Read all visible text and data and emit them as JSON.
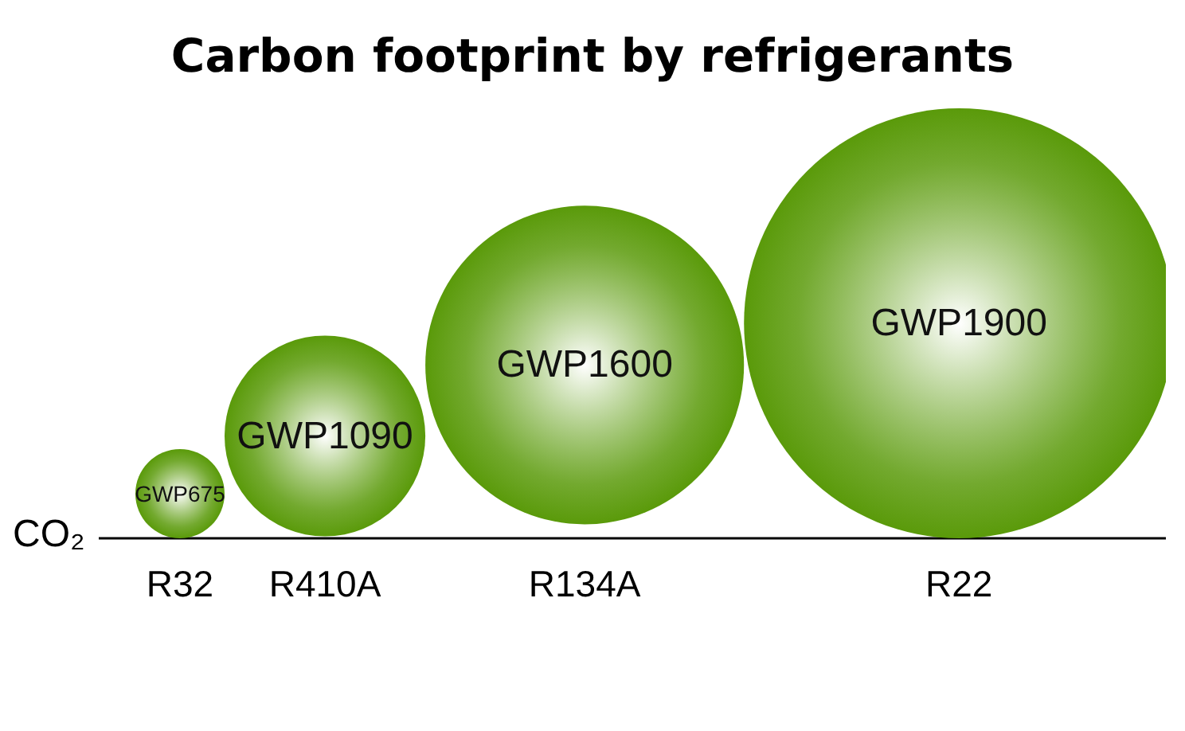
{
  "chart_data": {
    "type": "bubble",
    "title": "Carbon footprint by refrigerants",
    "annotations": [
      "CO₂"
    ],
    "categories": [
      "R32",
      "R410A",
      "R134A",
      "R22"
    ],
    "values": [
      675,
      1090,
      1600,
      1900
    ],
    "sizes": [
      0.043,
      0.218,
      0.549,
      1
    ],
    "value_labels": [
      "GWP675",
      "GWP1090",
      "GWP1600",
      "GWP1900"
    ],
    "color": "#5a9a0a",
    "grid": false,
    "legend": false
  }
}
